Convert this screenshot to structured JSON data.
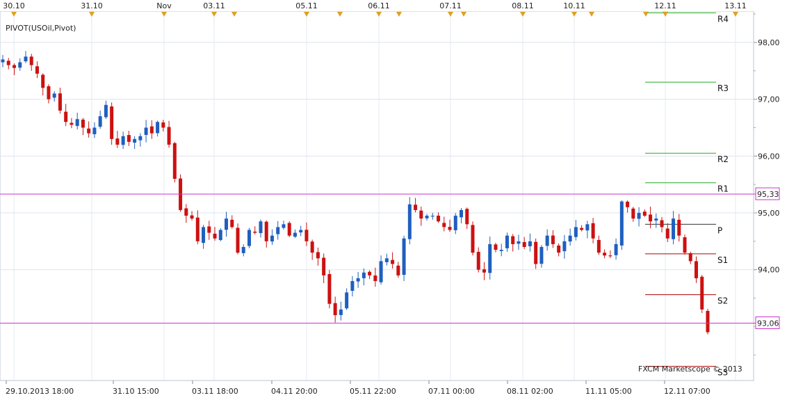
{
  "indicator_label": "PIVOT(USOil,Pivot)",
  "watermark": "FXCM Marketscope © 2013",
  "chart_data": {
    "type": "candlestick",
    "symbol": "USOil",
    "title": "PIVOT(USOil,Pivot)",
    "ylim": [
      92.05,
      98.55
    ],
    "y_ticks": [
      "98,00",
      "97,00",
      "96,00",
      "95,00",
      "94,00"
    ],
    "y_tick_values": [
      98,
      97,
      96,
      95,
      94
    ],
    "top_date_markers": [
      "30.10",
      "31.10",
      "Nov",
      "03.11",
      "05.11",
      "06.11",
      "07.11",
      "08.11",
      "10.11",
      "12.11",
      "13.11"
    ],
    "bottom_time_labels": [
      "29.10.2013 18:00",
      "31.10 15:00",
      "03.11 18:00",
      "04.11 20:00",
      "05.11 22:00",
      "07.11 00:00",
      "08.11 02:00",
      "11.11 05:00",
      "12.11 07:00"
    ],
    "price_line_labels": [
      "95,33",
      "93,06"
    ],
    "price_line_values": [
      95.33,
      93.06
    ],
    "price_line_color": "#cc33cc",
    "pivot_levels": [
      {
        "name": "R4",
        "value": 98.52,
        "color": "#22aa22"
      },
      {
        "name": "R3",
        "value": 97.3,
        "color": "#22aa22"
      },
      {
        "name": "R2",
        "value": 96.05,
        "color": "#22aa22"
      },
      {
        "name": "R1",
        "value": 95.53,
        "color": "#22aa22"
      },
      {
        "name": "P",
        "value": 94.8,
        "color": "#333333"
      },
      {
        "name": "S1",
        "value": 94.28,
        "color": "#aa0000"
      },
      {
        "name": "S2",
        "value": 93.56,
        "color": "#aa0000"
      },
      {
        "name": "S3",
        "value": 92.3,
        "color": "#aa0000"
      }
    ],
    "up_color": "#1f5fbf",
    "down_color": "#cc1111",
    "close_path": [
      97.7,
      97.6,
      97.55,
      97.65,
      97.75,
      97.6,
      97.45,
      97.2,
      97.0,
      97.1,
      96.8,
      96.6,
      96.55,
      96.65,
      96.5,
      96.4,
      96.5,
      96.7,
      96.9,
      96.3,
      96.2,
      96.35,
      96.25,
      96.3,
      96.35,
      96.5,
      96.4,
      96.6,
      96.5,
      96.2,
      95.6,
      95.05,
      94.95,
      94.9,
      94.5,
      94.75,
      94.65,
      94.55,
      94.7,
      94.9,
      94.75,
      94.3,
      94.4,
      94.7,
      94.65,
      94.85,
      94.5,
      94.6,
      94.75,
      94.8,
      94.6,
      94.65,
      94.7,
      94.5,
      94.3,
      94.2,
      93.9,
      93.4,
      93.2,
      93.3,
      93.6,
      93.8,
      93.85,
      93.95,
      93.9,
      93.8,
      94.15,
      94.2,
      94.1,
      93.9,
      94.55,
      95.15,
      95.05,
      94.9,
      94.95,
      94.95,
      94.85,
      94.75,
      94.7,
      94.95,
      95.05,
      94.8,
      94.3,
      94.0,
      93.95,
      94.45,
      94.35,
      94.35,
      94.6,
      94.45,
      94.5,
      94.4,
      94.5,
      94.1,
      94.4,
      94.6,
      94.45,
      94.3,
      94.5,
      94.6,
      94.75,
      94.7,
      94.8,
      94.55,
      94.3,
      94.25,
      94.25,
      94.45,
      95.2,
      95.1,
      94.9,
      95.0,
      94.95,
      94.85,
      94.9,
      94.75,
      94.55,
      94.9,
      94.6,
      94.3,
      94.15,
      93.85,
      93.3,
      92.9
    ]
  }
}
